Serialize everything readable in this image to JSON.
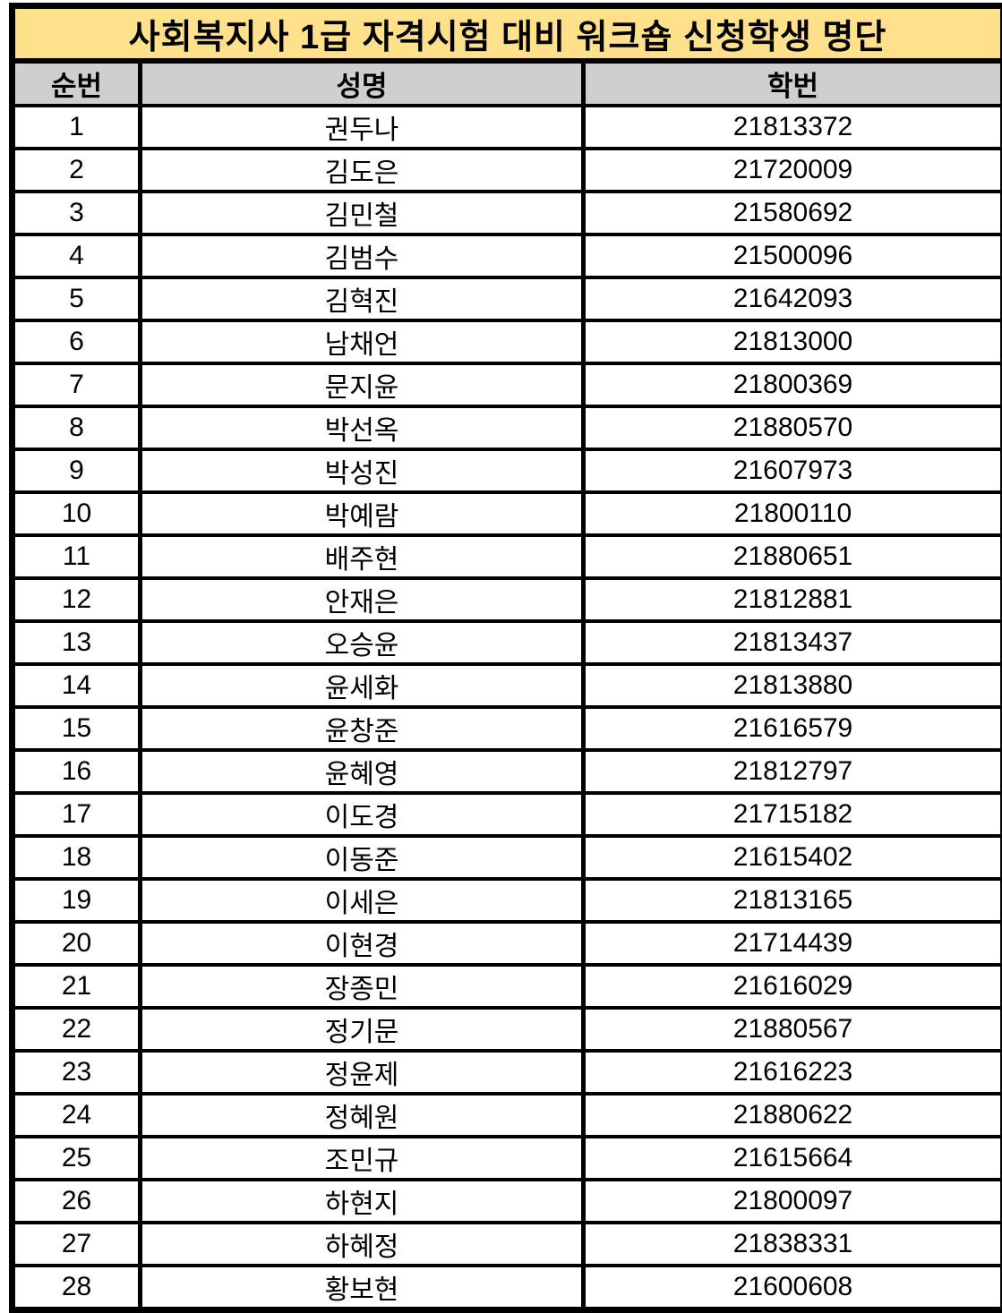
{
  "table": {
    "title": "사회복지사 1급 자격시험 대비 워크숍 신청학생 명단",
    "columns": [
      "순번",
      "성명",
      "학번"
    ],
    "rows": [
      {
        "no": "1",
        "name": "권두나",
        "student_id": "21813372"
      },
      {
        "no": "2",
        "name": "김도은",
        "student_id": "21720009"
      },
      {
        "no": "3",
        "name": "김민철",
        "student_id": "21580692"
      },
      {
        "no": "4",
        "name": "김범수",
        "student_id": "21500096"
      },
      {
        "no": "5",
        "name": "김혁진",
        "student_id": "21642093"
      },
      {
        "no": "6",
        "name": "남채언",
        "student_id": "21813000"
      },
      {
        "no": "7",
        "name": "문지윤",
        "student_id": "21800369"
      },
      {
        "no": "8",
        "name": "박선옥",
        "student_id": "21880570"
      },
      {
        "no": "9",
        "name": "박성진",
        "student_id": "21607973"
      },
      {
        "no": "10",
        "name": "박예람",
        "student_id": "21800110"
      },
      {
        "no": "11",
        "name": "배주현",
        "student_id": "21880651"
      },
      {
        "no": "12",
        "name": "안재은",
        "student_id": "21812881"
      },
      {
        "no": "13",
        "name": "오승윤",
        "student_id": "21813437"
      },
      {
        "no": "14",
        "name": "윤세화",
        "student_id": "21813880"
      },
      {
        "no": "15",
        "name": "윤창준",
        "student_id": "21616579"
      },
      {
        "no": "16",
        "name": "윤혜영",
        "student_id": "21812797"
      },
      {
        "no": "17",
        "name": "이도경",
        "student_id": "21715182"
      },
      {
        "no": "18",
        "name": "이동준",
        "student_id": "21615402"
      },
      {
        "no": "19",
        "name": "이세은",
        "student_id": "21813165"
      },
      {
        "no": "20",
        "name": "이현경",
        "student_id": "21714439"
      },
      {
        "no": "21",
        "name": "장종민",
        "student_id": "21616029"
      },
      {
        "no": "22",
        "name": "정기문",
        "student_id": "21880567"
      },
      {
        "no": "23",
        "name": "정윤제",
        "student_id": "21616223"
      },
      {
        "no": "24",
        "name": "정혜원",
        "student_id": "21880622"
      },
      {
        "no": "25",
        "name": "조민규",
        "student_id": "21615664"
      },
      {
        "no": "26",
        "name": "하현지",
        "student_id": "21800097"
      },
      {
        "no": "27",
        "name": "하혜정",
        "student_id": "21838331"
      },
      {
        "no": "28",
        "name": "황보현",
        "student_id": "21600608"
      }
    ]
  },
  "colors": {
    "title_bg": "#FFE18C",
    "header_bg": "#CFCFCF",
    "row_bg": "#FFFFFF",
    "border": "#000000",
    "text": "#000000"
  }
}
